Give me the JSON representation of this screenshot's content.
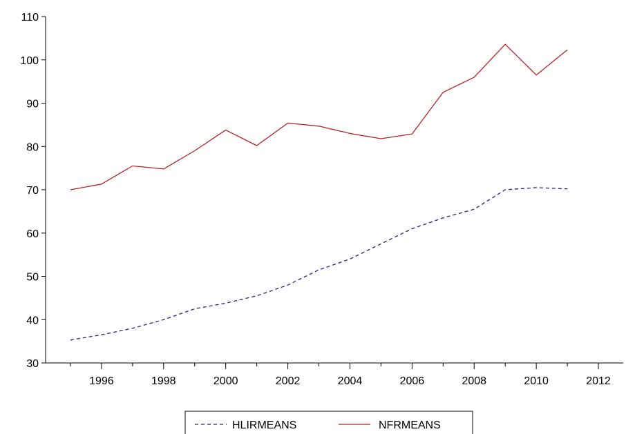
{
  "chart_data": {
    "type": "line",
    "title": "",
    "xlabel": "",
    "ylabel": "",
    "xlim": [
      1994.2,
      2012.8
    ],
    "ylim": [
      30,
      110
    ],
    "x_ticks": [
      1996,
      1998,
      2000,
      2002,
      2004,
      2006,
      2008,
      2010,
      2012
    ],
    "y_ticks": [
      30,
      40,
      50,
      60,
      70,
      80,
      90,
      100,
      110
    ],
    "grid": false,
    "legend_position": "bottom-center",
    "x": [
      1995,
      1996,
      1997,
      1998,
      1999,
      2000,
      2001,
      2002,
      2003,
      2004,
      2005,
      2006,
      2007,
      2008,
      2009,
      2010,
      2011
    ],
    "series": [
      {
        "name": "HLIRMEANS",
        "color": "#1f1f8f",
        "style": "dashed",
        "values": [
          35.3,
          36.5,
          38.0,
          40.0,
          42.5,
          43.8,
          45.5,
          48.0,
          51.5,
          54.0,
          57.5,
          61.0,
          63.5,
          65.5,
          70.0,
          70.5,
          70.2
        ]
      },
      {
        "name": "NFRMEANS",
        "color": "#b22222",
        "style": "solid",
        "values": [
          70.0,
          71.3,
          75.5,
          74.8,
          79.0,
          83.8,
          80.2,
          85.4,
          84.7,
          83.0,
          81.8,
          82.9,
          92.5,
          96.0,
          103.6,
          96.5,
          102.3
        ]
      }
    ]
  }
}
